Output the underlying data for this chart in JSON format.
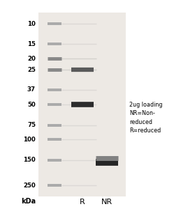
{
  "fig_width": 2.49,
  "fig_height": 3.0,
  "dpi": 100,
  "background_color": "#ffffff",
  "gel_bg_color": "#ede9e4",
  "kda_labels": [
    250,
    150,
    100,
    75,
    50,
    37,
    25,
    20,
    15,
    10
  ],
  "ladder_band_color": "#aaaaaa",
  "ladder_band_25_20_color": "#888888",
  "r_bands": [
    {
      "kda": 50,
      "intensity": 0.92,
      "lw": 5.5
    },
    {
      "kda": 25,
      "intensity": 0.72,
      "lw": 4.5
    }
  ],
  "nr_bands": [
    {
      "kda": 158,
      "intensity": 0.95,
      "lw": 7
    },
    {
      "kda": 145,
      "intensity": 0.55,
      "lw": 5
    }
  ],
  "annotation_text": "2ug loading\nNR=Non-\nreduced\nR=reduced",
  "col_label_R": "R",
  "col_label_NR": "NR",
  "kda_title": "kDa"
}
